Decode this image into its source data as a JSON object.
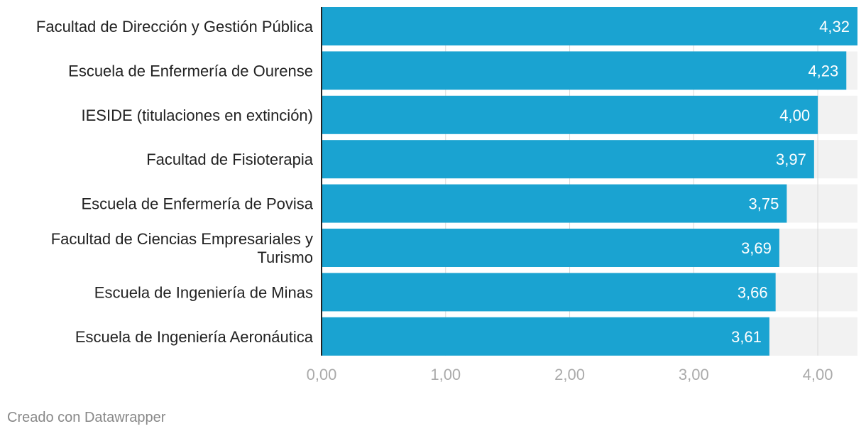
{
  "chart_data": {
    "type": "bar",
    "orientation": "horizontal",
    "categories": [
      [
        "Facultad de Dirección y Gestión Pública"
      ],
      [
        "Escuela de Enfermería de Ourense"
      ],
      [
        "IESIDE (titulaciones en extinción)"
      ],
      [
        "Facultad de Fisioterapia"
      ],
      [
        "Escuela de Enfermería de Povisa"
      ],
      [
        "Facultad de Ciencias Empresariales y",
        "Turismo"
      ],
      [
        "Escuela de Ingeniería de Minas"
      ],
      [
        "Escuela de Ingeniería Aeronáutica"
      ]
    ],
    "values": [
      4.32,
      4.23,
      4.0,
      3.97,
      3.75,
      3.69,
      3.66,
      3.61
    ],
    "value_labels": [
      "4,32",
      "4,23",
      "4,00",
      "3,97",
      "3,75",
      "3,69",
      "3,66",
      "3,61"
    ],
    "x_ticks": [
      0,
      1,
      2,
      3,
      4
    ],
    "x_tick_labels": [
      "0,00",
      "1,00",
      "2,00",
      "3,00",
      "4,00"
    ],
    "xlim": [
      0,
      4.32
    ],
    "grid": true,
    "bar_color": "#1aa3d1",
    "track_color": "#f2f2f2",
    "title": "",
    "xlabel": "",
    "ylabel": ""
  },
  "footer": {
    "credit": "Creado con Datawrapper"
  }
}
